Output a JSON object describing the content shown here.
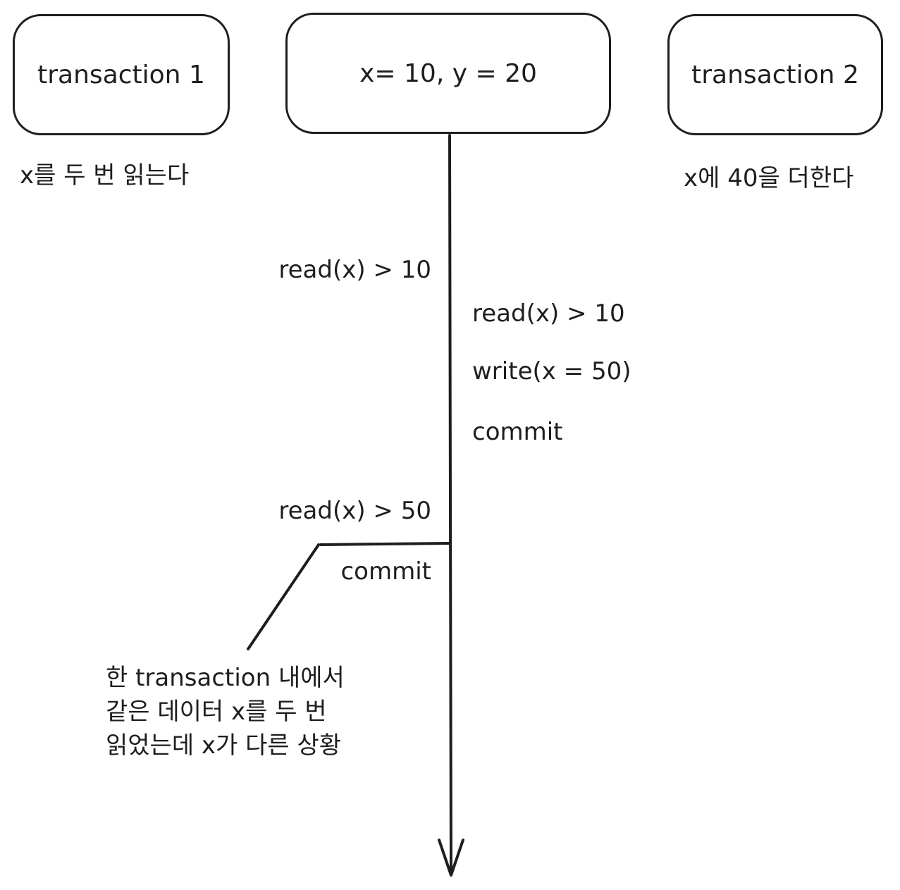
{
  "boxes": {
    "transaction1": "transaction 1",
    "state": "x= 10, y = 20",
    "transaction2": "transaction 2"
  },
  "descriptions": {
    "transaction1": "x를 두 번 읽는다",
    "transaction2": "x에 40을 더한다"
  },
  "transaction1_ops": {
    "read1": "read(x) > 10",
    "read2": "read(x) > 50",
    "commit": "commit"
  },
  "transaction2_ops": {
    "read": "read(x) > 10",
    "write": "write(x = 50)",
    "commit": "commit"
  },
  "note": {
    "line1": "한 transaction 내에서",
    "line2": "같은 데이터 x를 두 번",
    "line3": "읽었는데 x가 다른 상황"
  },
  "colors": {
    "stroke": "#1e1e1e",
    "background": "#ffffff"
  }
}
